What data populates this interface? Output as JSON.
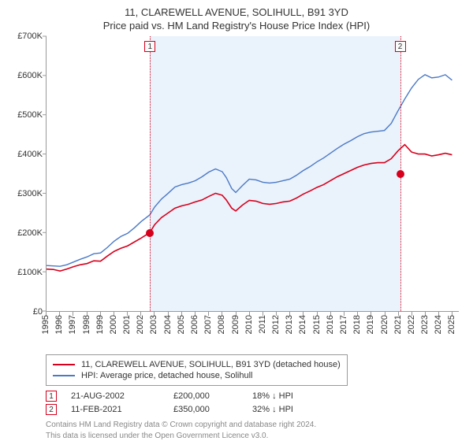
{
  "title": "11, CLAREWELL AVENUE, SOLIHULL, B91 3YD",
  "subtitle": "Price paid vs. HM Land Registry's House Price Index (HPI)",
  "chart": {
    "type": "line",
    "background_color": "#ffffff",
    "shaded_band_color": "#eaf2fb",
    "axis_color": "#999999",
    "x_range": [
      1995,
      2025.5
    ],
    "x_ticks": [
      1995,
      1996,
      1997,
      1998,
      1999,
      2000,
      2001,
      2002,
      2003,
      2004,
      2005,
      2006,
      2007,
      2008,
      2009,
      2010,
      2011,
      2012,
      2013,
      2014,
      2015,
      2016,
      2017,
      2018,
      2019,
      2020,
      2021,
      2022,
      2023,
      2024,
      2025
    ],
    "x_label_fontsize": 11,
    "y_range": [
      0,
      700000
    ],
    "y_ticks": [
      0,
      100000,
      200000,
      300000,
      400000,
      500000,
      600000,
      700000
    ],
    "y_tick_labels": [
      "£0",
      "£100K",
      "£200K",
      "£300K",
      "£400K",
      "£500K",
      "£600K",
      "£700K"
    ],
    "y_label_fontsize": 11,
    "shaded_from_x": 2002.64,
    "shaded_to_x": 2021.11,
    "series": [
      {
        "name": "property",
        "label": "11, CLAREWELL AVENUE, SOLIHULL, B91 3YD (detached house)",
        "color": "#d6001c",
        "line_width": 1.6,
        "points": [
          [
            1995.0,
            107000
          ],
          [
            1995.5,
            106000
          ],
          [
            1996.0,
            102000
          ],
          [
            1996.5,
            107000
          ],
          [
            1997.0,
            113000
          ],
          [
            1997.5,
            118000
          ],
          [
            1998.0,
            121000
          ],
          [
            1998.5,
            128000
          ],
          [
            1999.0,
            127000
          ],
          [
            1999.5,
            140000
          ],
          [
            2000.0,
            152000
          ],
          [
            2000.5,
            160000
          ],
          [
            2001.0,
            166000
          ],
          [
            2001.5,
            176000
          ],
          [
            2002.0,
            186000
          ],
          [
            2002.64,
            200000
          ],
          [
            2003.0,
            220000
          ],
          [
            2003.5,
            238000
          ],
          [
            2004.0,
            250000
          ],
          [
            2004.5,
            262000
          ],
          [
            2005.0,
            268000
          ],
          [
            2005.5,
            272000
          ],
          [
            2006.0,
            278000
          ],
          [
            2006.5,
            283000
          ],
          [
            2007.0,
            292000
          ],
          [
            2007.5,
            300000
          ],
          [
            2008.0,
            295000
          ],
          [
            2008.3,
            283000
          ],
          [
            2008.7,
            262000
          ],
          [
            2009.0,
            255000
          ],
          [
            2009.5,
            270000
          ],
          [
            2010.0,
            282000
          ],
          [
            2010.5,
            280000
          ],
          [
            2011.0,
            274000
          ],
          [
            2011.5,
            272000
          ],
          [
            2012.0,
            274000
          ],
          [
            2012.5,
            278000
          ],
          [
            2013.0,
            280000
          ],
          [
            2013.5,
            288000
          ],
          [
            2014.0,
            298000
          ],
          [
            2014.5,
            306000
          ],
          [
            2015.0,
            315000
          ],
          [
            2015.5,
            322000
          ],
          [
            2016.0,
            332000
          ],
          [
            2016.5,
            342000
          ],
          [
            2017.0,
            350000
          ],
          [
            2017.5,
            358000
          ],
          [
            2018.0,
            366000
          ],
          [
            2018.5,
            372000
          ],
          [
            2019.0,
            376000
          ],
          [
            2019.5,
            378000
          ],
          [
            2020.0,
            378000
          ],
          [
            2020.5,
            388000
          ],
          [
            2021.0,
            408000
          ],
          [
            2021.5,
            424000
          ],
          [
            2022.0,
            405000
          ],
          [
            2022.5,
            400000
          ],
          [
            2023.0,
            400000
          ],
          [
            2023.5,
            395000
          ],
          [
            2024.0,
            398000
          ],
          [
            2024.5,
            402000
          ],
          [
            2025.0,
            398000
          ]
        ]
      },
      {
        "name": "hpi",
        "label": "HPI: Average price, detached house, Solihull",
        "color": "#4a79c7",
        "line_width": 1.4,
        "points": [
          [
            1995.0,
            116000
          ],
          [
            1995.5,
            115000
          ],
          [
            1996.0,
            114000
          ],
          [
            1996.5,
            118000
          ],
          [
            1997.0,
            125000
          ],
          [
            1997.5,
            132000
          ],
          [
            1998.0,
            138000
          ],
          [
            1998.5,
            146000
          ],
          [
            1999.0,
            148000
          ],
          [
            1999.5,
            162000
          ],
          [
            2000.0,
            178000
          ],
          [
            2000.5,
            190000
          ],
          [
            2001.0,
            198000
          ],
          [
            2001.5,
            212000
          ],
          [
            2002.0,
            228000
          ],
          [
            2002.64,
            245000
          ],
          [
            2003.0,
            265000
          ],
          [
            2003.5,
            285000
          ],
          [
            2004.0,
            300000
          ],
          [
            2004.5,
            316000
          ],
          [
            2005.0,
            322000
          ],
          [
            2005.5,
            326000
          ],
          [
            2006.0,
            332000
          ],
          [
            2006.5,
            342000
          ],
          [
            2007.0,
            354000
          ],
          [
            2007.5,
            362000
          ],
          [
            2008.0,
            355000
          ],
          [
            2008.3,
            340000
          ],
          [
            2008.7,
            312000
          ],
          [
            2009.0,
            302000
          ],
          [
            2009.5,
            320000
          ],
          [
            2010.0,
            336000
          ],
          [
            2010.5,
            334000
          ],
          [
            2011.0,
            328000
          ],
          [
            2011.5,
            326000
          ],
          [
            2012.0,
            328000
          ],
          [
            2012.5,
            332000
          ],
          [
            2013.0,
            336000
          ],
          [
            2013.5,
            346000
          ],
          [
            2014.0,
            358000
          ],
          [
            2014.5,
            368000
          ],
          [
            2015.0,
            380000
          ],
          [
            2015.5,
            390000
          ],
          [
            2016.0,
            402000
          ],
          [
            2016.5,
            414000
          ],
          [
            2017.0,
            425000
          ],
          [
            2017.5,
            434000
          ],
          [
            2018.0,
            444000
          ],
          [
            2018.5,
            452000
          ],
          [
            2019.0,
            456000
          ],
          [
            2019.5,
            458000
          ],
          [
            2020.0,
            460000
          ],
          [
            2020.5,
            478000
          ],
          [
            2021.0,
            510000
          ],
          [
            2021.5,
            540000
          ],
          [
            2022.0,
            568000
          ],
          [
            2022.5,
            590000
          ],
          [
            2023.0,
            602000
          ],
          [
            2023.5,
            594000
          ],
          [
            2024.0,
            596000
          ],
          [
            2024.5,
            602000
          ],
          [
            2025.0,
            588000
          ]
        ]
      }
    ],
    "sale_markers": [
      {
        "n": "1",
        "x": 2002.64,
        "y": 200000,
        "color": "#d6001c"
      },
      {
        "n": "2",
        "x": 2021.11,
        "y": 350000,
        "color": "#d6001c"
      }
    ]
  },
  "sales": [
    {
      "n": "1",
      "date": "21-AUG-2002",
      "price": "£200,000",
      "diff": "18% ↓ HPI",
      "color": "#d6001c"
    },
    {
      "n": "2",
      "date": "11-FEB-2021",
      "price": "£350,000",
      "diff": "32% ↓ HPI",
      "color": "#d6001c"
    }
  ],
  "attribution_line1": "Contains HM Land Registry data © Crown copyright and database right 2024.",
  "attribution_line2": "This data is licensed under the Open Government Licence v3.0."
}
